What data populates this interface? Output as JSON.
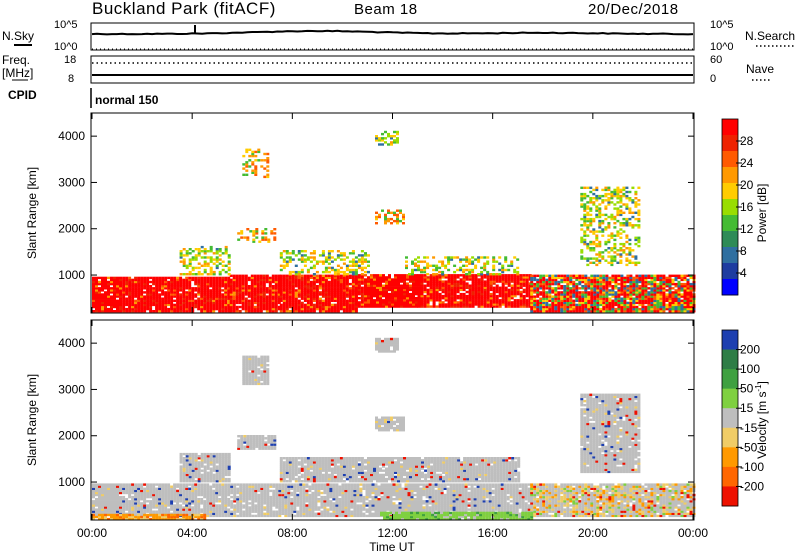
{
  "header": {
    "station": "Buckland Park (fitACF)",
    "beam": "Beam 18",
    "date": "20/Dec/2018"
  },
  "nsky_panel": {
    "left_label": "N.Sky",
    "right_label": "N.Search",
    "left_ticks": [
      "10^5",
      "10^0"
    ],
    "right_ticks": [
      "10^5",
      "10^0"
    ]
  },
  "freq_panel": {
    "left_label_line1": "Freq.",
    "left_label_line2": "[MHz]",
    "right_label": "Nave",
    "left_ticks": [
      "18",
      "8"
    ],
    "right_ticks": [
      "60",
      "0"
    ]
  },
  "cpid_panel": {
    "label": "CPID",
    "mode": "normal 150"
  },
  "chart_data": [
    {
      "type": "heatmap",
      "name": "power",
      "xlabel": "Time UT",
      "ylabel": "Slant Range [km]",
      "x_ticks": [
        "00:00",
        "04:00",
        "08:00",
        "12:00",
        "16:00",
        "20:00",
        "00:00"
      ],
      "xlim_hours": [
        0,
        24
      ],
      "ylim": [
        180,
        4500
      ],
      "y_ticks": [
        1000,
        2000,
        3000,
        4000
      ],
      "colorbar_label": "Power [dB]",
      "colorbar_ticks": [
        "28",
        "24",
        "20",
        "16",
        "12",
        "8",
        "4"
      ],
      "colorbar_colors": [
        "#ff0000",
        "#ee2200",
        "#ff5a00",
        "#ff9900",
        "#ffcc00",
        "#99dd00",
        "#44bb33",
        "#2e8b57",
        "#2f6fa0",
        "#1e3ca0",
        "#0000ff"
      ],
      "regions": [
        {
          "t0": 0.0,
          "t1": 5.5,
          "r0": 200,
          "r1": 950,
          "level": "strong"
        },
        {
          "t0": 5.5,
          "t1": 7.5,
          "r0": 200,
          "r1": 1000,
          "level": "strong"
        },
        {
          "t0": 7.5,
          "t1": 10.5,
          "r0": 200,
          "r1": 1000,
          "level": "strong"
        },
        {
          "t0": 10.5,
          "t1": 13.0,
          "r0": 300,
          "r1": 1000,
          "level": "strong"
        },
        {
          "t0": 13.0,
          "t1": 17.5,
          "r0": 300,
          "r1": 1000,
          "level": "strong"
        },
        {
          "t0": 17.5,
          "t1": 24.0,
          "r0": 200,
          "r1": 1000,
          "level": "mixed"
        },
        {
          "t0": 5.8,
          "t1": 7.3,
          "r0": 1700,
          "r1": 2000,
          "level": "mid"
        },
        {
          "t0": 6.0,
          "t1": 7.0,
          "r0": 3100,
          "r1": 3700,
          "level": "mid"
        },
        {
          "t0": 11.3,
          "t1": 12.4,
          "r0": 2100,
          "r1": 2400,
          "level": "mid"
        },
        {
          "t0": 11.3,
          "t1": 12.2,
          "r0": 3800,
          "r1": 4100,
          "level": "weak"
        },
        {
          "t0": 19.5,
          "t1": 21.8,
          "r0": 1200,
          "r1": 2900,
          "level": "weak"
        },
        {
          "t0": 7.5,
          "t1": 11.0,
          "r0": 1000,
          "r1": 1500,
          "level": "weak"
        },
        {
          "t0": 12.5,
          "t1": 17.0,
          "r0": 1000,
          "r1": 1400,
          "level": "weak"
        },
        {
          "t0": 3.5,
          "t1": 5.5,
          "r0": 1000,
          "r1": 1600,
          "level": "weak"
        }
      ]
    },
    {
      "type": "heatmap",
      "name": "velocity",
      "xlabel": "Time UT",
      "ylabel": "Slant Range [km]",
      "x_ticks": [
        "00:00",
        "04:00",
        "08:00",
        "12:00",
        "16:00",
        "20:00",
        "00:00"
      ],
      "xlim_hours": [
        0,
        24
      ],
      "ylim": [
        180,
        4500
      ],
      "y_ticks": [
        1000,
        2000,
        3000,
        4000
      ],
      "colorbar_label": "Velocity [m s",
      "colorbar_label_sup": "-1",
      "colorbar_label_close": "]",
      "colorbar_ticks": [
        "200",
        "100",
        "50",
        "15",
        "-15",
        "-50",
        "-100",
        "-200"
      ],
      "colorbar_colors": [
        "#1d3fb0",
        "#2e7d46",
        "#3fa040",
        "#7fd040",
        "#bebebe",
        "#f0cc66",
        "#ff9900",
        "#ff6600",
        "#ee1100"
      ],
      "regions": [
        {
          "t0": 0.0,
          "t1": 17.5,
          "r0": 250,
          "r1": 950,
          "level": "gray"
        },
        {
          "t0": 17.5,
          "t1": 24.0,
          "r0": 250,
          "r1": 950,
          "level": "grayorange"
        },
        {
          "t0": 11.5,
          "t1": 17.5,
          "r0": 180,
          "r1": 350,
          "level": "green"
        },
        {
          "t0": 0.0,
          "t1": 4.5,
          "r0": 180,
          "r1": 300,
          "level": "orange"
        },
        {
          "t0": 5.8,
          "t1": 7.3,
          "r0": 1700,
          "r1": 2000,
          "level": "gray"
        },
        {
          "t0": 6.0,
          "t1": 7.0,
          "r0": 3100,
          "r1": 3700,
          "level": "gray"
        },
        {
          "t0": 11.3,
          "t1": 12.4,
          "r0": 2100,
          "r1": 2400,
          "level": "gray"
        },
        {
          "t0": 11.3,
          "t1": 12.2,
          "r0": 3800,
          "r1": 4100,
          "level": "gray"
        },
        {
          "t0": 19.5,
          "t1": 21.8,
          "r0": 1200,
          "r1": 2900,
          "level": "gray"
        },
        {
          "t0": 7.5,
          "t1": 17.0,
          "r0": 1000,
          "r1": 1500,
          "level": "gray"
        },
        {
          "t0": 3.5,
          "t1": 5.5,
          "r0": 1000,
          "r1": 1600,
          "level": "gray"
        }
      ]
    }
  ]
}
